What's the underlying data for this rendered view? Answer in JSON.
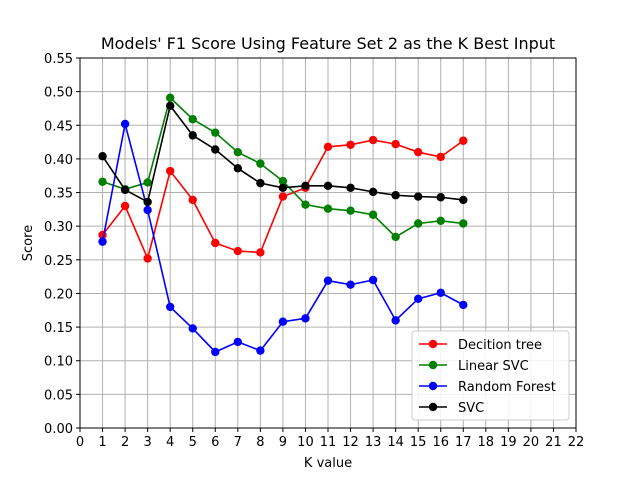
{
  "chart_data": {
    "type": "line",
    "title": "Models' F1 Score Using Feature Set 2 as the K Best Input",
    "xlabel": "K value",
    "ylabel": "Score",
    "xlim": [
      0,
      22
    ],
    "ylim": [
      0,
      0.55
    ],
    "xticks": [
      "0",
      "1",
      "2",
      "3",
      "4",
      "5",
      "6",
      "7",
      "8",
      "9",
      "10",
      "11",
      "12",
      "13",
      "14",
      "15",
      "16",
      "17",
      "18",
      "19",
      "20",
      "21",
      "22"
    ],
    "yticks": [
      "0.00",
      "0.05",
      "0.10",
      "0.15",
      "0.20",
      "0.25",
      "0.30",
      "0.35",
      "0.40",
      "0.45",
      "0.50",
      "0.55"
    ],
    "grid": true,
    "legend_position": "lower-right",
    "x": [
      1,
      2,
      3,
      4,
      5,
      6,
      7,
      8,
      9,
      10,
      11,
      12,
      13,
      14,
      15,
      16,
      17
    ],
    "series": [
      {
        "name": "Decition tree",
        "color": "#ff0000",
        "values": [
          0.287,
          0.33,
          0.252,
          0.382,
          0.339,
          0.275,
          0.263,
          0.261,
          0.344,
          0.357,
          0.418,
          0.421,
          0.428,
          0.422,
          0.41,
          0.403,
          0.427
        ]
      },
      {
        "name": "Linear SVC",
        "color": "#008000",
        "values": [
          0.366,
          0.355,
          0.365,
          0.491,
          0.459,
          0.439,
          0.41,
          0.393,
          0.367,
          0.332,
          0.326,
          0.323,
          0.317,
          0.284,
          0.304,
          0.308,
          0.304
        ]
      },
      {
        "name": "Random Forest",
        "color": "#0000ff",
        "values": [
          0.277,
          0.452,
          0.324,
          0.18,
          0.148,
          0.113,
          0.128,
          0.115,
          0.158,
          0.163,
          0.219,
          0.213,
          0.22,
          0.16,
          0.192,
          0.201,
          0.183
        ]
      },
      {
        "name": "SVC",
        "color": "#000000",
        "values": [
          0.404,
          0.354,
          0.336,
          0.479,
          0.435,
          0.414,
          0.386,
          0.364,
          0.357,
          0.36,
          0.36,
          0.357,
          0.351,
          0.346,
          0.344,
          0.343,
          0.339
        ]
      }
    ]
  }
}
